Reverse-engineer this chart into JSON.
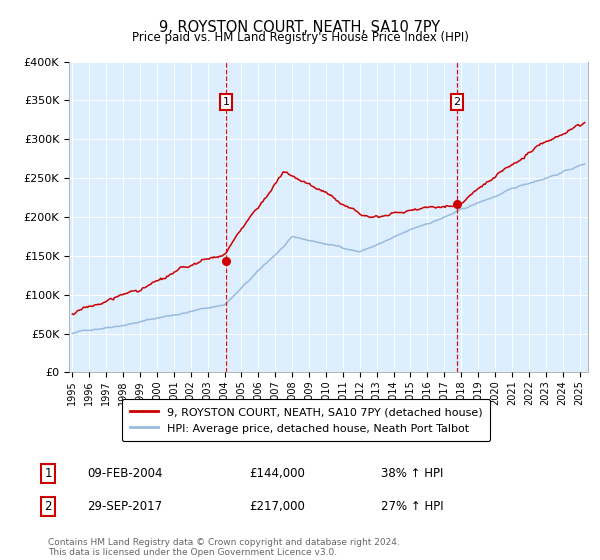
{
  "title": "9, ROYSTON COURT, NEATH, SA10 7PY",
  "subtitle": "Price paid vs. HM Land Registry's House Price Index (HPI)",
  "ylim": [
    0,
    400000
  ],
  "yticks": [
    0,
    50000,
    100000,
    150000,
    200000,
    250000,
    300000,
    350000,
    400000
  ],
  "ytick_labels": [
    "£0",
    "£50K",
    "£100K",
    "£150K",
    "£200K",
    "£250K",
    "£300K",
    "£350K",
    "£400K"
  ],
  "xlim_start": 1994.8,
  "xlim_end": 2025.5,
  "plot_bg": "#ddeeff",
  "red_color": "#cc0000",
  "blue_color": "#99bbdd",
  "transaction1_x": 2004.1,
  "transaction1_y": 144000,
  "transaction2_x": 2017.75,
  "transaction2_y": 217000,
  "legend1": "9, ROYSTON COURT, NEATH, SA10 7PY (detached house)",
  "legend2": "HPI: Average price, detached house, Neath Port Talbot",
  "note1_label": "1",
  "note1_date": "09-FEB-2004",
  "note1_price": "£144,000",
  "note1_hpi": "38% ↑ HPI",
  "note2_label": "2",
  "note2_date": "29-SEP-2017",
  "note2_price": "£217,000",
  "note2_hpi": "27% ↑ HPI",
  "footer": "Contains HM Land Registry data © Crown copyright and database right 2024.\nThis data is licensed under the Open Government Licence v3.0."
}
